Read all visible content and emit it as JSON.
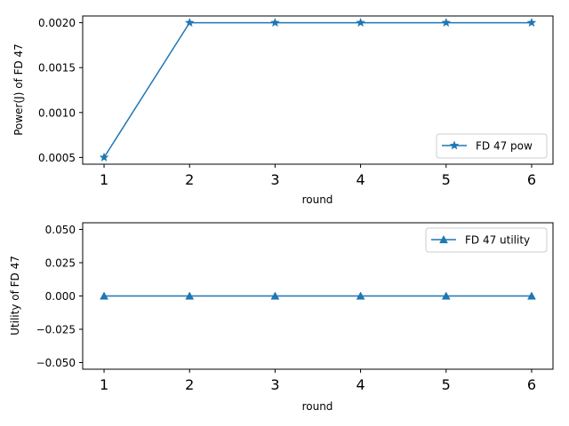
{
  "chart_data": [
    {
      "type": "line",
      "xlabel": "round",
      "ylabel": "Power(J) of FD 47",
      "x": [
        1,
        2,
        3,
        4,
        5,
        6
      ],
      "xticks": [
        "1",
        "2",
        "3",
        "4",
        "5",
        "6"
      ],
      "yticks": [
        0.0005,
        0.001,
        0.0015,
        0.002
      ],
      "ytick_labels": [
        "0.0005",
        "0.0010",
        "0.0015",
        "0.0020"
      ],
      "ylim": [
        0.000425,
        0.002075
      ],
      "xlim": [
        0.75,
        6.25
      ],
      "legend_position": "lower-right",
      "grid": false,
      "series": [
        {
          "name": "FD 47 pow",
          "marker": "star",
          "color": "#1f77b4",
          "values": [
            0.0005,
            0.002,
            0.002,
            0.002,
            0.002,
            0.002
          ]
        }
      ]
    },
    {
      "type": "line",
      "xlabel": "round",
      "ylabel": "Utility of FD 47",
      "x": [
        1,
        2,
        3,
        4,
        5,
        6
      ],
      "xticks": [
        "1",
        "2",
        "3",
        "4",
        "5",
        "6"
      ],
      "yticks": [
        -0.05,
        -0.025,
        0.0,
        0.025,
        0.05
      ],
      "ytick_labels": [
        "−0.050",
        "−0.025",
        "0.000",
        "0.025",
        "0.050"
      ],
      "ylim": [
        -0.055,
        0.055
      ],
      "xlim": [
        0.75,
        6.25
      ],
      "legend_position": "upper-right",
      "grid": false,
      "series": [
        {
          "name": "FD 47 utility",
          "marker": "triangle-up",
          "color": "#1f77b4",
          "values": [
            0,
            0,
            0,
            0,
            0,
            0
          ]
        }
      ]
    }
  ]
}
